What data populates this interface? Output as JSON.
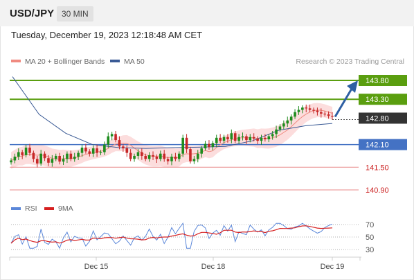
{
  "header": {
    "pair": "USD/JPY",
    "timeframe": "30 MIN",
    "datetime": "Tuesday, December 19, 2023 12:18:48 AM CET"
  },
  "legend": {
    "ma20": "MA 20 + Bollinger Bands",
    "ma50": "MA 50",
    "research": "Research © 2023 Trading Central"
  },
  "rsi_legend": {
    "rsi": "RSI",
    "ma9": "9MA"
  },
  "colors": {
    "resistance": "#5a9e0f",
    "support": "#4472c4",
    "level_red": "#cc2222",
    "current": "#333333",
    "candle_up": "#1e8c1e",
    "candle_down": "#c62828",
    "bollinger": "#fcd7d7",
    "ma20": "#f08a80",
    "ma50": "#3a5a95",
    "arrow": "#2e5fa3",
    "rsi_line": "#5b87d9",
    "rsi_ma": "#d62020"
  },
  "chart_data": [
    {
      "type": "candlestick",
      "x_labels": [
        "Dec 15",
        "Dec 18",
        "Dec 19"
      ],
      "ylim": [
        140.55,
        144.35
      ],
      "price_levels": [
        {
          "value": 143.8,
          "label": "143.80",
          "kind": "resistance"
        },
        {
          "value": 143.3,
          "label": "143.30",
          "kind": "resistance"
        },
        {
          "value": 142.8,
          "label": "142.80",
          "kind": "current"
        },
        {
          "value": 142.1,
          "label": "142.10",
          "kind": "support"
        },
        {
          "value": 141.5,
          "label": "141.50",
          "kind": "level"
        },
        {
          "value": 140.9,
          "label": "140.90",
          "kind": "level"
        }
      ],
      "close_path": [
        141.68,
        141.78,
        141.9,
        141.82,
        142.02,
        141.88,
        141.72,
        141.6,
        141.86,
        141.74,
        141.62,
        141.72,
        141.8,
        141.65,
        141.72,
        141.86,
        141.72,
        141.78,
        141.88,
        142.02,
        141.92,
        141.86,
        142.0,
        141.88,
        141.9,
        142.1,
        142.32,
        142.38,
        142.22,
        142.05,
        142.0,
        141.88,
        141.72,
        141.8,
        141.9,
        141.8,
        141.72,
        141.82,
        141.78,
        141.72,
        141.86,
        141.72,
        141.66,
        141.78,
        141.72,
        141.86,
        142.28,
        141.98,
        141.66,
        141.72,
        141.86,
        142.0,
        142.12,
        142.04,
        142.14,
        142.28,
        142.2,
        142.3,
        142.24,
        142.4,
        142.2,
        142.3,
        142.32,
        142.22,
        142.3,
        142.26,
        142.2,
        142.28,
        142.24,
        142.32,
        142.38,
        142.5,
        142.58,
        142.66,
        142.74,
        142.84,
        142.96,
        143.02,
        143.08,
        143.06,
        143.02,
        143.0,
        142.96,
        142.92,
        142.9,
        142.86,
        142.85
      ],
      "ma50": [
        143.9,
        142.9,
        142.4,
        142.1,
        142.02,
        142.0,
        142.02,
        142.03,
        142.05,
        142.2,
        142.48,
        142.6,
        142.66
      ],
      "arrow": {
        "from": 142.8,
        "to": 143.8
      }
    },
    {
      "type": "line",
      "series": [
        {
          "name": "RSI"
        },
        {
          "name": "9MA"
        }
      ],
      "ylim": [
        10,
        90
      ],
      "levels": [
        {
          "value": 70,
          "label": "70"
        },
        {
          "value": 50,
          "label": "50"
        },
        {
          "value": 30,
          "label": "30"
        }
      ]
    }
  ]
}
